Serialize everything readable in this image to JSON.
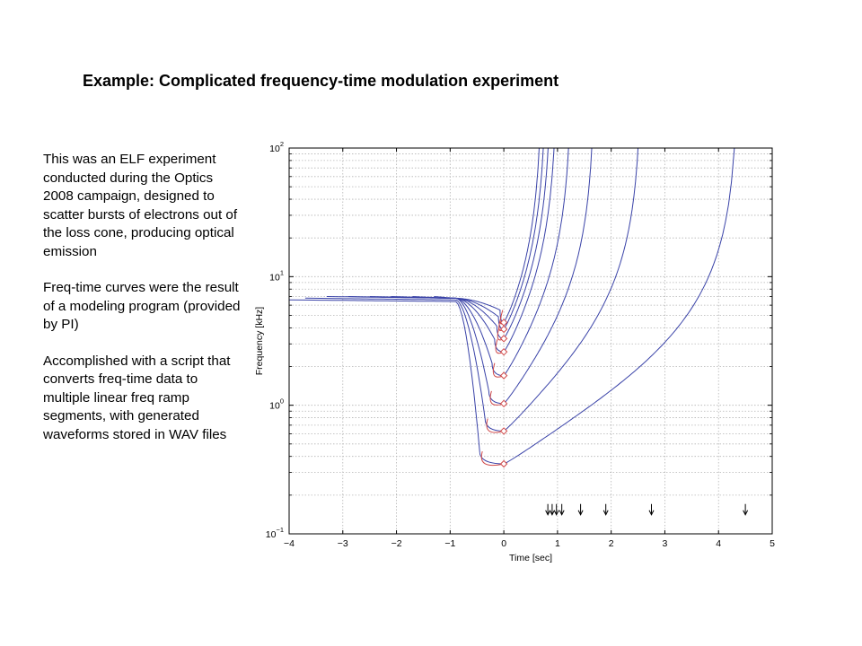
{
  "slide": {
    "title": "Example: Complicated frequency-time modulation experiment",
    "paragraphs": [
      "This was an ELF experiment conducted during the Optics 2008 campaign, designed to scatter bursts of electrons out of the loss cone, producing optical emission",
      "Freq-time curves were the result of a modeling program (provided by PI)",
      "Accomplished with a script that converts freq-time data to multiple linear freq ramp segments, with generated waveforms stored in WAV files"
    ]
  },
  "chart_data": {
    "type": "line",
    "xlabel": "Time [sec]",
    "ylabel": "Frequency [kHz]",
    "xlim": [
      -4,
      5
    ],
    "ylim": [
      0.1,
      100
    ],
    "yscale": "log",
    "grid": true,
    "x_ticks": [
      "−4",
      "−3",
      "−2",
      "−1",
      "0",
      "1",
      "2",
      "3",
      "4",
      "5"
    ],
    "y_ticks": [
      {
        "base": "10",
        "exp": "−1",
        "value": 0.1
      },
      {
        "base": "10",
        "exp": "0",
        "value": 1
      },
      {
        "base": "10",
        "exp": "1",
        "value": 10
      },
      {
        "base": "10",
        "exp": "2",
        "value": 100
      }
    ],
    "colors": {
      "blue": "#3a43a8",
      "red": "#d04848",
      "grid": "#b4b4b4"
    },
    "series": [
      {
        "x_start": -4.0,
        "f_start": 6.6,
        "f0": 0.35,
        "x_vertex": -0.45,
        "x_end": 4.35,
        "k": 3.3
      },
      {
        "x_start": -3.7,
        "f_start": 6.8,
        "f0": 0.63,
        "x_vertex": -0.35,
        "x_end": 2.55,
        "k": 3.0
      },
      {
        "x_start": -3.3,
        "f_start": 7.0,
        "f0": 1.03,
        "x_vertex": -0.28,
        "x_end": 1.68,
        "k": 2.6
      },
      {
        "x_start": -2.9,
        "f_start": 7.0,
        "f0": 1.7,
        "x_vertex": -0.22,
        "x_end": 1.25,
        "k": 2.3
      },
      {
        "x_start": -2.5,
        "f_start": 7.0,
        "f0": 2.6,
        "x_vertex": -0.17,
        "x_end": 0.98,
        "k": 2.0
      },
      {
        "x_start": -2.1,
        "f_start": 7.0,
        "f0": 3.3,
        "x_vertex": -0.13,
        "x_end": 0.87,
        "k": 1.8
      },
      {
        "x_start": -1.7,
        "f_start": 7.0,
        "f0": 3.9,
        "x_vertex": -0.1,
        "x_end": 0.78,
        "k": 1.7
      },
      {
        "x_start": -1.3,
        "f_start": 7.0,
        "f0": 4.4,
        "x_vertex": -0.07,
        "x_end": 0.7,
        "k": 1.6
      }
    ],
    "markers": [
      {
        "x": 0,
        "y": 0.35
      },
      {
        "x": 0,
        "y": 0.63
      },
      {
        "x": 0,
        "y": 1.03
      },
      {
        "x": 0,
        "y": 1.7
      },
      {
        "x": 0,
        "y": 2.6
      },
      {
        "x": 0,
        "y": 3.3
      },
      {
        "x": 0,
        "y": 3.9
      },
      {
        "x": 0,
        "y": 4.4
      }
    ],
    "arrows": [
      {
        "x": 0.82,
        "y": 0.155
      },
      {
        "x": 0.9,
        "y": 0.155
      },
      {
        "x": 0.98,
        "y": 0.155
      },
      {
        "x": 1.08,
        "y": 0.155
      },
      {
        "x": 1.43,
        "y": 0.155
      },
      {
        "x": 1.9,
        "y": 0.155
      },
      {
        "x": 2.75,
        "y": 0.155
      },
      {
        "x": 4.5,
        "y": 0.155
      }
    ]
  }
}
